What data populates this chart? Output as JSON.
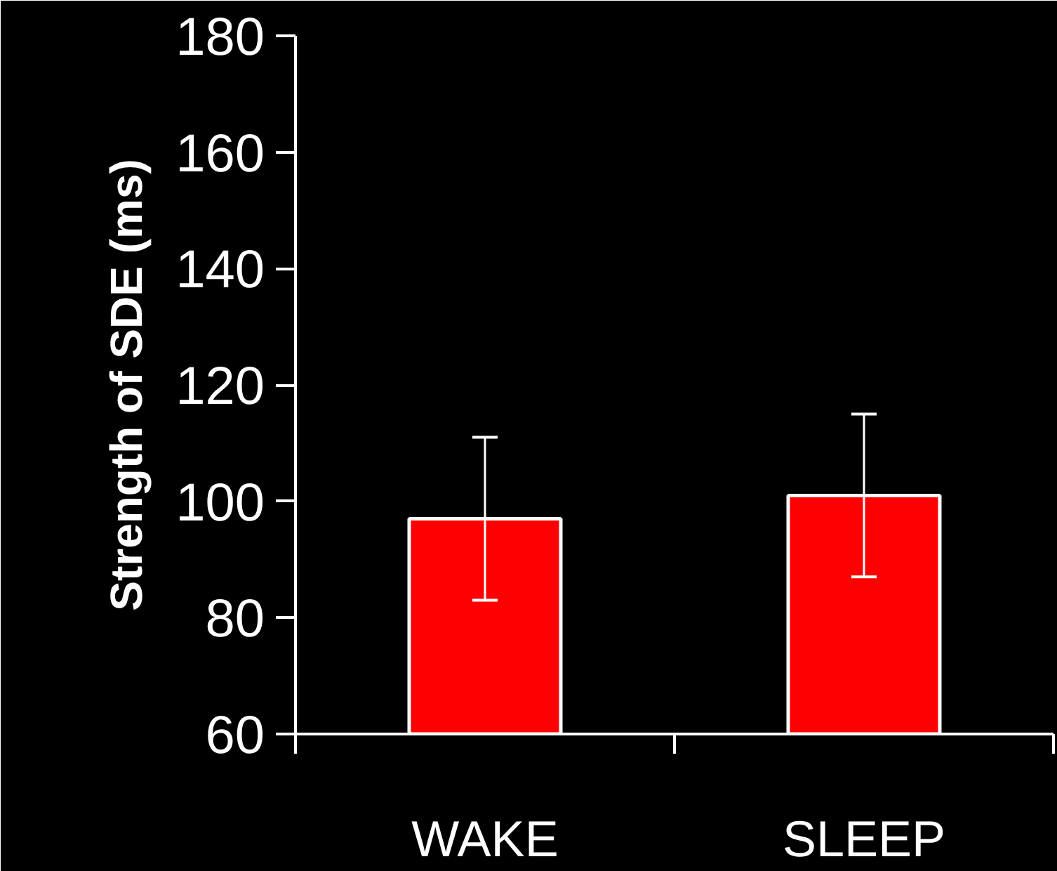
{
  "chart_data": {
    "type": "bar",
    "ylabel": "Strength of SDE (ms)",
    "categories": [
      "WAKE",
      "SLEEP"
    ],
    "values": [
      97,
      101
    ],
    "errors": [
      14,
      14
    ],
    "color": "#ff0000",
    "ylim": [
      60,
      180
    ],
    "yticks": [
      60,
      80,
      100,
      120,
      140,
      160,
      180
    ],
    "grid": false
  }
}
